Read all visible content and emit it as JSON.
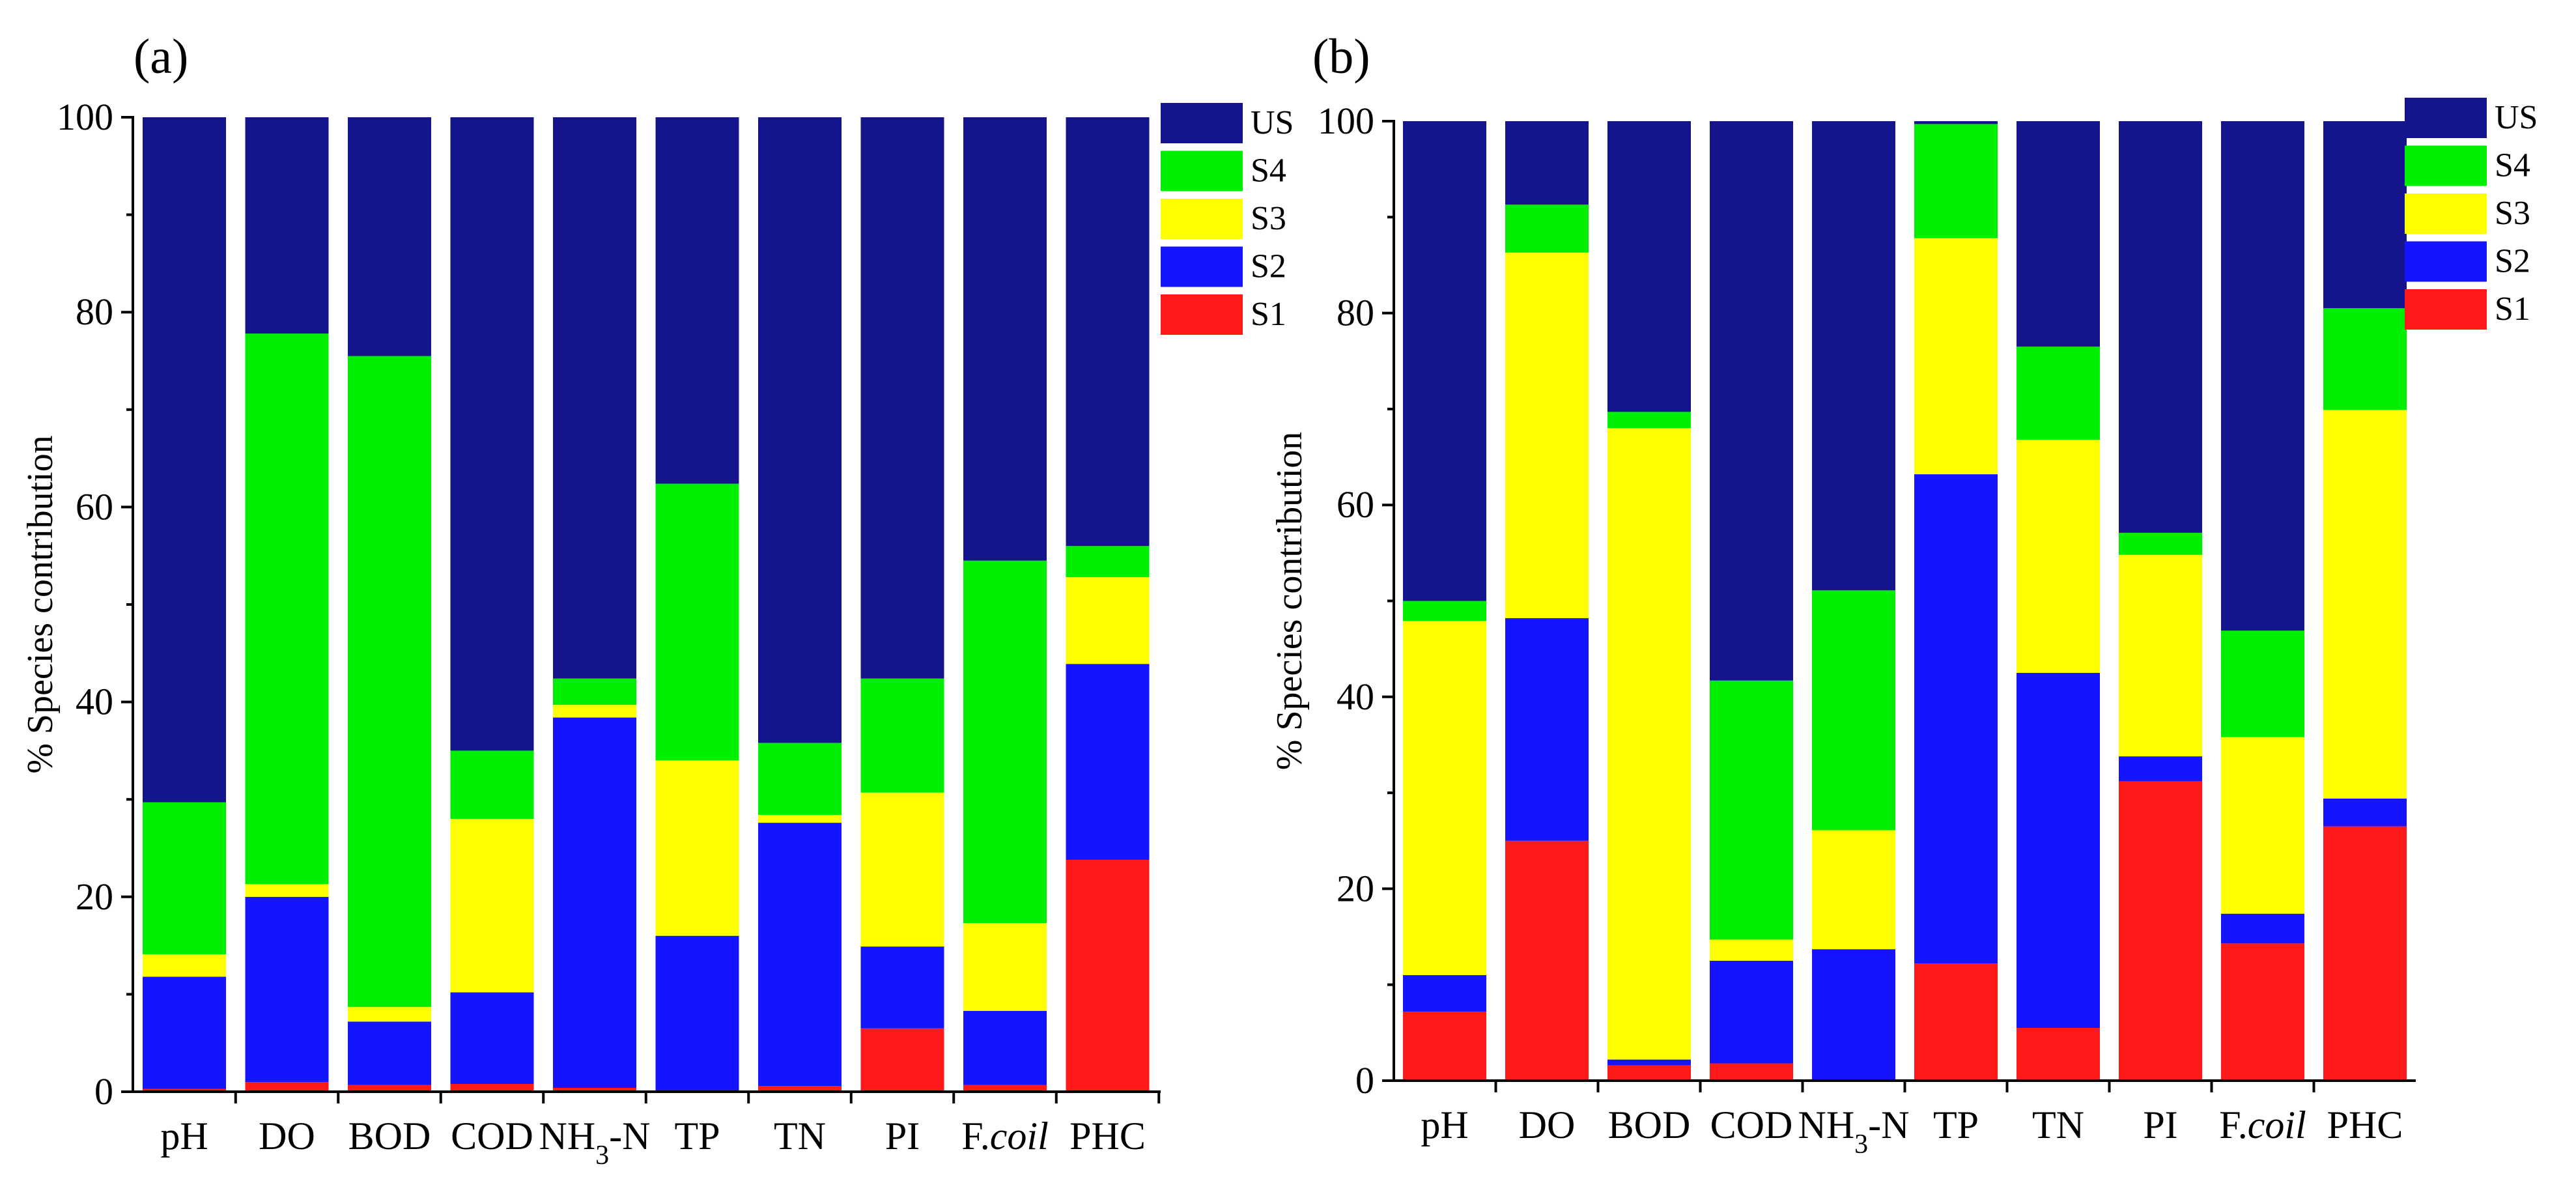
{
  "chart_data": [
    {
      "type": "bar",
      "stacked": true,
      "panel_label": "(a)",
      "ylabel": "% Species contribution",
      "ylim": [
        0,
        100
      ],
      "yticks": [
        "0",
        "20",
        "40",
        "60",
        "80",
        "100"
      ],
      "categories": [
        "pH",
        "DO",
        "BOD",
        "COD",
        "NH3-N",
        "TP",
        "TN",
        "PI",
        "F.coil",
        "PHC"
      ],
      "series": [
        {
          "name": "S1",
          "color": "#ff1a1a",
          "values": [
            0.3,
            1.0,
            0.7,
            0.8,
            0.4,
            0.0,
            0.6,
            6.5,
            0.7,
            23.8
          ]
        },
        {
          "name": "S2",
          "color": "#1414ff",
          "values": [
            11.5,
            19.0,
            6.5,
            9.4,
            38.0,
            16.0,
            27.0,
            8.4,
            7.6,
            20.1
          ]
        },
        {
          "name": "S3",
          "color": "#ffff00",
          "values": [
            2.3,
            1.3,
            1.5,
            17.8,
            1.3,
            18.0,
            0.8,
            15.8,
            9.0,
            8.9
          ]
        },
        {
          "name": "S4",
          "color": "#00ee00",
          "values": [
            15.6,
            56.5,
            66.8,
            7.0,
            2.7,
            28.4,
            7.4,
            11.7,
            37.2,
            3.2
          ]
        },
        {
          "name": "US",
          "color": "#14148c",
          "values": [
            70.3,
            22.2,
            24.5,
            65.0,
            57.6,
            37.6,
            64.2,
            57.6,
            45.5,
            44.0
          ]
        }
      ],
      "legend_order": [
        "US",
        "S4",
        "S3",
        "S2",
        "S1"
      ],
      "legend_position": "right"
    },
    {
      "type": "bar",
      "stacked": true,
      "panel_label": "(b)",
      "ylabel": "% Species contribution",
      "ylim": [
        0,
        100
      ],
      "yticks": [
        "0",
        "20",
        "40",
        "60",
        "80",
        "100"
      ],
      "categories": [
        "pH",
        "DO",
        "BOD",
        "COD",
        "NH3-N",
        "TP",
        "TN",
        "PI",
        "F.coil",
        "PHC"
      ],
      "series": [
        {
          "name": "S1",
          "color": "#ff1a1a",
          "values": [
            7.2,
            25.0,
            1.6,
            1.8,
            0.0,
            12.2,
            5.5,
            31.2,
            14.3,
            26.5
          ]
        },
        {
          "name": "S2",
          "color": "#1414ff",
          "values": [
            3.8,
            23.2,
            0.6,
            10.7,
            13.7,
            51.0,
            37.0,
            2.6,
            3.1,
            2.9
          ]
        },
        {
          "name": "S3",
          "color": "#ffff00",
          "values": [
            36.9,
            38.1,
            65.8,
            2.2,
            12.4,
            24.6,
            24.3,
            21.0,
            18.4,
            40.5
          ]
        },
        {
          "name": "S4",
          "color": "#00ee00",
          "values": [
            2.1,
            5.0,
            1.7,
            27.0,
            25.0,
            11.9,
            9.7,
            2.3,
            11.1,
            10.6
          ]
        },
        {
          "name": "US",
          "color": "#14148c",
          "values": [
            50.0,
            8.7,
            30.3,
            58.3,
            48.9,
            0.3,
            23.5,
            42.9,
            53.1,
            19.5
          ]
        }
      ],
      "legend_order": [
        "US",
        "S4",
        "S3",
        "S2",
        "S1"
      ],
      "legend_position": "right"
    }
  ]
}
